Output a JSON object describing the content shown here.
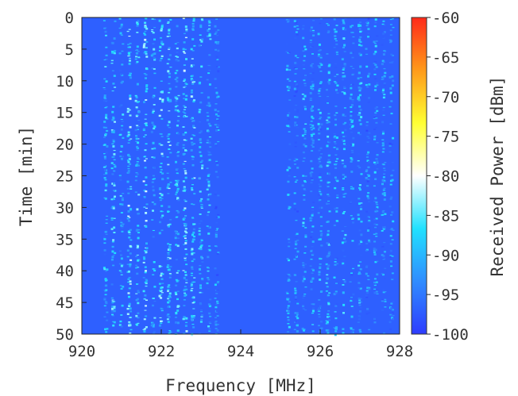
{
  "chart_data": {
    "type": "heatmap",
    "title": "",
    "xlabel": "Frequency [MHz]",
    "ylabel": "Time [min]",
    "colorbar_label": "Received Power [dBm]",
    "xlim": [
      920,
      928
    ],
    "ylim": [
      0,
      50
    ],
    "y_inverted": true,
    "clim": [
      -100,
      -60
    ],
    "x_ticks": [
      "920",
      "922",
      "924",
      "926",
      "928"
    ],
    "y_ticks": [
      "0",
      "5",
      "10",
      "15",
      "20",
      "25",
      "30",
      "35",
      "40",
      "45",
      "50"
    ],
    "colorbar_ticks": [
      "-60",
      "-65",
      "-70",
      "-75",
      "-80",
      "-85",
      "-90",
      "-95",
      "-100"
    ],
    "background_level_dBm": -97,
    "colormap": [
      "#2e3cff",
      "#2f8cff",
      "#21e1ff",
      "#ffffff",
      "#ffff33",
      "#ff9a1a",
      "#ff2a1a"
    ],
    "active_channels_mhz": [
      {
        "f": 920.6,
        "level": -91
      },
      {
        "f": 920.8,
        "level": -89
      },
      {
        "f": 921.0,
        "level": -91
      },
      {
        "f": 921.2,
        "level": -87
      },
      {
        "f": 921.4,
        "level": -89
      },
      {
        "f": 921.6,
        "level": -87
      },
      {
        "f": 921.8,
        "level": -90
      },
      {
        "f": 922.0,
        "level": -88
      },
      {
        "f": 922.2,
        "level": -88
      },
      {
        "f": 922.4,
        "level": -90
      },
      {
        "f": 922.6,
        "level": -87
      },
      {
        "f": 922.8,
        "level": -88
      },
      {
        "f": 923.0,
        "level": -90
      },
      {
        "f": 923.2,
        "level": -91
      },
      {
        "f": 923.4,
        "level": -93
      },
      {
        "f": 925.2,
        "level": -92
      },
      {
        "f": 925.4,
        "level": -93
      },
      {
        "f": 925.6,
        "level": -91
      },
      {
        "f": 925.8,
        "level": -92
      },
      {
        "f": 926.0,
        "level": -92
      },
      {
        "f": 926.2,
        "level": -91
      },
      {
        "f": 926.4,
        "level": -92
      },
      {
        "f": 926.6,
        "level": -91
      },
      {
        "f": 926.8,
        "level": -92
      },
      {
        "f": 927.0,
        "level": -91
      },
      {
        "f": 927.2,
        "level": -93
      },
      {
        "f": 927.4,
        "level": -92
      },
      {
        "f": 927.6,
        "level": -92
      },
      {
        "f": 927.8,
        "level": -93
      }
    ]
  }
}
